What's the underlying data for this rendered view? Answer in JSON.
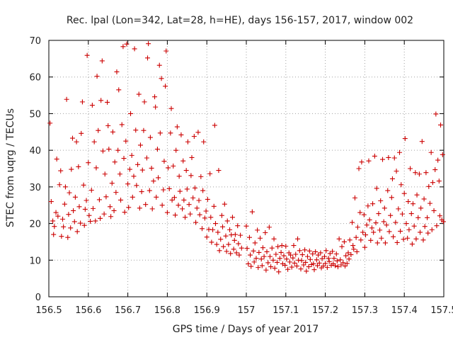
{
  "chart_data": {
    "type": "scatter",
    "title": "Rec. lpal (Lon=342, Lat=28, h=HE), days 156-157, 2017, window 002",
    "xlabel": "GPS time / Days of year 2017",
    "ylabel": "STEC from uqrg / TECUs",
    "xlim": [
      156.5,
      157.5
    ],
    "ylim": [
      0,
      70
    ],
    "x_ticks": [
      156.5,
      156.6,
      156.7,
      156.8,
      156.9,
      157,
      157.1,
      157.2,
      157.3,
      157.4,
      157.5
    ],
    "x_tick_labels": [
      "156.5",
      "156.6",
      "156.7",
      "156.8",
      "156.9",
      "157",
      "157.1",
      "157.2",
      "157.3",
      "157.4",
      "157.5"
    ],
    "y_ticks": [
      0,
      10,
      20,
      30,
      40,
      50,
      60,
      70
    ],
    "y_tick_labels": [
      "0",
      "10",
      "20",
      "30",
      "40",
      "50",
      "60",
      "70"
    ],
    "grid": true,
    "marker": "+",
    "color": "#cc0000",
    "points": [
      [
        156.503,
        47.4
      ],
      [
        156.506,
        26.0
      ],
      [
        156.51,
        20.7
      ],
      [
        156.512,
        17.0
      ],
      [
        156.514,
        19.2
      ],
      [
        156.518,
        23.0
      ],
      [
        156.52,
        37.6
      ],
      [
        156.523,
        22.0
      ],
      [
        156.527,
        30.6
      ],
      [
        156.53,
        34.4
      ],
      [
        156.532,
        16.5
      ],
      [
        156.535,
        21.2
      ],
      [
        156.537,
        19.1
      ],
      [
        156.54,
        25.3
      ],
      [
        156.542,
        30.0
      ],
      [
        156.545,
        53.9
      ],
      [
        156.548,
        16.2
      ],
      [
        156.55,
        22.5
      ],
      [
        156.552,
        28.4
      ],
      [
        156.555,
        18.8
      ],
      [
        156.557,
        34.8
      ],
      [
        156.56,
        43.3
      ],
      [
        156.562,
        23.5
      ],
      [
        156.565,
        20.5
      ],
      [
        156.567,
        27.2
      ],
      [
        156.57,
        42.3
      ],
      [
        156.572,
        17.8
      ],
      [
        156.575,
        35.5
      ],
      [
        156.577,
        24.6
      ],
      [
        156.58,
        20.1
      ],
      [
        156.582,
        44.6
      ],
      [
        156.585,
        53.2
      ],
      [
        156.588,
        30.5
      ],
      [
        156.59,
        19.5
      ],
      [
        156.592,
        23.9
      ],
      [
        156.595,
        26.3
      ],
      [
        156.597,
        65.9
      ],
      [
        156.6,
        36.6
      ],
      [
        156.602,
        22.2
      ],
      [
        156.605,
        20.6
      ],
      [
        156.608,
        29.1
      ],
      [
        156.61,
        52.3
      ],
      [
        156.612,
        24.1
      ],
      [
        156.615,
        42.3
      ],
      [
        156.618,
        20.7
      ],
      [
        156.62,
        35.2
      ],
      [
        156.622,
        60.2
      ],
      [
        156.625,
        45.4
      ],
      [
        156.628,
        26.5
      ],
      [
        156.63,
        21.4
      ],
      [
        156.632,
        53.6
      ],
      [
        156.635,
        64.4
      ],
      [
        156.637,
        39.8
      ],
      [
        156.64,
        22.6
      ],
      [
        156.642,
        33.5
      ],
      [
        156.645,
        27.3
      ],
      [
        156.648,
        53.1
      ],
      [
        156.65,
        46.7
      ],
      [
        156.652,
        40.3
      ],
      [
        156.655,
        24.6
      ],
      [
        156.657,
        21.9
      ],
      [
        156.66,
        31.0
      ],
      [
        156.662,
        45.0
      ],
      [
        156.665,
        23.5
      ],
      [
        156.667,
        36.8
      ],
      [
        156.67,
        28.5
      ],
      [
        156.672,
        61.4
      ],
      [
        156.675,
        40.0
      ],
      [
        156.677,
        56.5
      ],
      [
        156.68,
        33.5
      ],
      [
        156.682,
        26.4
      ],
      [
        156.685,
        47.0
      ],
      [
        156.688,
        68.3
      ],
      [
        156.69,
        37.8
      ],
      [
        156.692,
        23.1
      ],
      [
        156.695,
        42.5
      ],
      [
        156.697,
        69.0
      ],
      [
        156.7,
        30.8
      ],
      [
        156.702,
        24.4
      ],
      [
        156.705,
        34.8
      ],
      [
        156.707,
        50.0
      ],
      [
        156.71,
        38.6
      ],
      [
        156.712,
        27.2
      ],
      [
        156.715,
        32.9
      ],
      [
        156.717,
        67.7
      ],
      [
        156.72,
        45.5
      ],
      [
        156.722,
        30.4
      ],
      [
        156.725,
        36.1
      ],
      [
        156.728,
        55.3
      ],
      [
        156.73,
        24.2
      ],
      [
        156.732,
        41.4
      ],
      [
        156.735,
        28.7
      ],
      [
        156.737,
        34.6
      ],
      [
        156.74,
        45.4
      ],
      [
        156.742,
        53.2
      ],
      [
        156.745,
        25.2
      ],
      [
        156.748,
        37.9
      ],
      [
        156.75,
        65.2
      ],
      [
        156.752,
        69.1
      ],
      [
        156.755,
        29.0
      ],
      [
        156.757,
        43.5
      ],
      [
        156.76,
        35.1
      ],
      [
        156.762,
        24.0
      ],
      [
        156.765,
        31.6
      ],
      [
        156.768,
        54.6
      ],
      [
        156.77,
        51.8
      ],
      [
        156.772,
        27.2
      ],
      [
        156.775,
        40.3
      ],
      [
        156.777,
        32.5
      ],
      [
        156.78,
        63.2
      ],
      [
        156.782,
        44.7
      ],
      [
        156.785,
        59.6
      ],
      [
        156.787,
        25.0
      ],
      [
        156.79,
        29.2
      ],
      [
        156.792,
        37.0
      ],
      [
        156.795,
        57.5
      ],
      [
        156.797,
        67.1
      ],
      [
        156.8,
        23.0
      ],
      [
        156.802,
        35.2
      ],
      [
        156.805,
        29.5
      ],
      [
        156.808,
        44.7
      ],
      [
        156.81,
        51.4
      ],
      [
        156.812,
        26.4
      ],
      [
        156.815,
        35.7
      ],
      [
        156.818,
        27.1
      ],
      [
        156.82,
        22.3
      ],
      [
        156.822,
        40.0
      ],
      [
        156.825,
        46.4
      ],
      [
        156.828,
        25.0
      ],
      [
        156.83,
        32.9
      ],
      [
        156.832,
        28.8
      ],
      [
        156.835,
        44.2
      ],
      [
        156.838,
        24.0
      ],
      [
        156.84,
        37.1
      ],
      [
        156.842,
        26.4
      ],
      [
        156.845,
        21.7
      ],
      [
        156.848,
        34.5
      ],
      [
        156.85,
        29.4
      ],
      [
        156.852,
        42.3
      ],
      [
        156.855,
        25.2
      ],
      [
        156.858,
        22.6
      ],
      [
        156.86,
        33.1
      ],
      [
        156.862,
        38.0
      ],
      [
        156.865,
        27.0
      ],
      [
        156.868,
        43.8
      ],
      [
        156.87,
        29.7
      ],
      [
        156.872,
        20.3
      ],
      [
        156.875,
        24.2
      ],
      [
        156.878,
        44.9
      ],
      [
        156.88,
        26.3
      ],
      [
        156.882,
        22.4
      ],
      [
        156.885,
        32.8
      ],
      [
        156.888,
        18.6
      ],
      [
        156.89,
        29.0
      ],
      [
        156.892,
        42.3
      ],
      [
        156.895,
        21.5
      ],
      [
        156.898,
        23.4
      ],
      [
        156.9,
        16.3
      ],
      [
        156.902,
        26.6
      ],
      [
        156.905,
        18.4
      ],
      [
        156.908,
        33.6
      ],
      [
        156.91,
        21.7
      ],
      [
        156.912,
        14.9
      ],
      [
        156.915,
        18.3
      ],
      [
        156.918,
        24.7
      ],
      [
        156.92,
        46.8
      ],
      [
        156.922,
        20.0
      ],
      [
        156.925,
        14.3
      ],
      [
        156.928,
        17.6
      ],
      [
        156.93,
        34.5
      ],
      [
        156.932,
        12.6
      ],
      [
        156.935,
        15.7
      ],
      [
        156.938,
        22.2
      ],
      [
        156.94,
        19.1
      ],
      [
        156.942,
        13.7
      ],
      [
        156.945,
        25.3
      ],
      [
        156.948,
        16.6
      ],
      [
        156.95,
        12.4
      ],
      [
        156.952,
        20.7
      ],
      [
        156.955,
        14.3
      ],
      [
        156.958,
        18.3
      ],
      [
        156.96,
        11.8
      ],
      [
        156.962,
        16.9
      ],
      [
        156.965,
        21.7
      ],
      [
        156.968,
        13.0
      ],
      [
        156.97,
        15.4
      ],
      [
        156.972,
        17.0
      ],
      [
        156.975,
        12.0
      ],
      [
        156.978,
        19.4
      ],
      [
        156.98,
        14.5
      ],
      [
        156.982,
        11.4
      ],
      [
        156.985,
        16.8
      ],
      [
        156.988,
        13.3
      ],
      [
        157.0,
        19.3
      ],
      [
        157.002,
        13.2
      ],
      [
        157.005,
        9.0
      ],
      [
        157.008,
        16.2
      ],
      [
        157.01,
        11.4
      ],
      [
        157.012,
        8.3
      ],
      [
        157.015,
        23.2
      ],
      [
        157.018,
        12.5
      ],
      [
        157.02,
        9.5
      ],
      [
        157.022,
        14.7
      ],
      [
        157.025,
        10.5
      ],
      [
        157.028,
        18.2
      ],
      [
        157.03,
        8.0
      ],
      [
        157.032,
        12.1
      ],
      [
        157.035,
        16.0
      ],
      [
        157.038,
        10.3
      ],
      [
        157.04,
        8.5
      ],
      [
        157.042,
        13.4
      ],
      [
        157.045,
        11.0
      ],
      [
        157.048,
        17.5
      ],
      [
        157.05,
        7.3
      ],
      [
        157.052,
        12.3
      ],
      [
        157.055,
        9.3
      ],
      [
        157.058,
        19.0
      ],
      [
        157.06,
        11.0
      ],
      [
        157.062,
        8.2
      ],
      [
        157.065,
        13.3
      ],
      [
        157.068,
        10.0
      ],
      [
        157.07,
        15.8
      ],
      [
        157.072,
        7.8
      ],
      [
        157.075,
        11.6
      ],
      [
        157.078,
        9.4
      ],
      [
        157.08,
        13.7
      ],
      [
        157.082,
        6.8
      ],
      [
        157.085,
        10.5
      ],
      [
        157.088,
        12.1
      ],
      [
        157.09,
        14.0
      ],
      [
        157.092,
        9.0
      ],
      [
        157.095,
        11.2
      ],
      [
        157.098,
        8.6
      ],
      [
        157.1,
        13.8
      ],
      [
        157.102,
        10.3
      ],
      [
        157.105,
        7.5
      ],
      [
        157.108,
        12.0
      ],
      [
        157.11,
        9.5
      ],
      [
        157.112,
        11.4
      ],
      [
        157.115,
        8.1
      ],
      [
        157.118,
        10.6
      ],
      [
        157.12,
        14.0
      ],
      [
        157.122,
        9.2
      ],
      [
        157.125,
        11.6
      ],
      [
        157.128,
        8.4
      ],
      [
        157.13,
        15.8
      ],
      [
        157.132,
        10.0
      ],
      [
        157.135,
        12.6
      ],
      [
        157.138,
        7.6
      ],
      [
        157.14,
        9.9
      ],
      [
        157.142,
        11.5
      ],
      [
        157.145,
        8.7
      ],
      [
        157.148,
        12.8
      ],
      [
        157.15,
        9.4
      ],
      [
        157.152,
        7.0
      ],
      [
        157.155,
        11.0
      ],
      [
        157.158,
        8.2
      ],
      [
        157.16,
        12.5
      ],
      [
        157.162,
        10.2
      ],
      [
        157.165,
        8.8
      ],
      [
        157.168,
        11.7
      ],
      [
        157.17,
        9.0
      ],
      [
        157.172,
        7.4
      ],
      [
        157.175,
        12.3
      ],
      [
        157.178,
        10.1
      ],
      [
        157.18,
        8.5
      ],
      [
        157.182,
        11.4
      ],
      [
        157.185,
        9.2
      ],
      [
        157.188,
        12.0
      ],
      [
        157.19,
        7.9
      ],
      [
        157.192,
        10.4
      ],
      [
        157.195,
        8.4
      ],
      [
        157.198,
        11.0
      ],
      [
        157.2,
        9.1
      ],
      [
        157.202,
        12.6
      ],
      [
        157.205,
        8.0
      ],
      [
        157.208,
        10.5
      ],
      [
        157.21,
        9.6
      ],
      [
        157.212,
        11.8
      ],
      [
        157.215,
        8.6
      ],
      [
        157.218,
        12.4
      ],
      [
        157.22,
        9.0
      ],
      [
        157.222,
        10.5
      ],
      [
        157.225,
        8.5
      ],
      [
        157.228,
        11.7
      ],
      [
        157.23,
        9.8
      ],
      [
        157.232,
        8.2
      ],
      [
        157.235,
        15.8
      ],
      [
        157.238,
        10.1
      ],
      [
        157.24,
        8.7
      ],
      [
        157.242,
        13.7
      ],
      [
        157.245,
        9.3
      ],
      [
        157.248,
        15.0
      ],
      [
        157.25,
        8.4
      ],
      [
        157.252,
        11.2
      ],
      [
        157.255,
        9.1
      ],
      [
        157.258,
        12.0
      ],
      [
        157.26,
        10.3
      ],
      [
        157.262,
        15.5
      ],
      [
        157.265,
        11.5
      ],
      [
        157.268,
        20.3
      ],
      [
        157.27,
        14.0
      ],
      [
        157.272,
        13.0
      ],
      [
        157.275,
        27.0
      ],
      [
        157.278,
        16.2
      ],
      [
        157.28,
        12.3
      ],
      [
        157.282,
        19.0
      ],
      [
        157.285,
        35.0
      ],
      [
        157.288,
        23.0
      ],
      [
        157.29,
        15.5
      ],
      [
        157.292,
        36.8
      ],
      [
        157.295,
        17.6
      ],
      [
        157.298,
        22.4
      ],
      [
        157.3,
        13.5
      ],
      [
        157.302,
        16.9
      ],
      [
        157.305,
        19.6
      ],
      [
        157.308,
        24.8
      ],
      [
        157.31,
        37.1
      ],
      [
        157.312,
        21.0
      ],
      [
        157.315,
        15.4
      ],
      [
        157.318,
        18.8
      ],
      [
        157.32,
        25.4
      ],
      [
        157.322,
        17.6
      ],
      [
        157.325,
        38.4
      ],
      [
        157.328,
        20.2
      ],
      [
        157.33,
        29.6
      ],
      [
        157.332,
        14.7
      ],
      [
        157.335,
        22.7
      ],
      [
        157.338,
        18.2
      ],
      [
        157.34,
        26.2
      ],
      [
        157.342,
        16.0
      ],
      [
        157.345,
        37.5
      ],
      [
        157.348,
        20.5
      ],
      [
        157.35,
        24.2
      ],
      [
        157.352,
        14.7
      ],
      [
        157.355,
        19.6
      ],
      [
        157.358,
        29.0
      ],
      [
        157.36,
        38.0
      ],
      [
        157.362,
        17.8
      ],
      [
        157.365,
        22.2
      ],
      [
        157.368,
        27.1
      ],
      [
        157.37,
        32.2
      ],
      [
        157.372,
        16.4
      ],
      [
        157.375,
        37.9
      ],
      [
        157.378,
        20.3
      ],
      [
        157.38,
        34.3
      ],
      [
        157.382,
        14.8
      ],
      [
        157.385,
        24.0
      ],
      [
        157.388,
        39.4
      ],
      [
        157.39,
        17.9
      ],
      [
        157.392,
        30.6
      ],
      [
        157.395,
        22.6
      ],
      [
        157.398,
        15.7
      ],
      [
        157.4,
        28.2
      ],
      [
        157.402,
        43.2
      ],
      [
        157.405,
        20.0
      ],
      [
        157.408,
        16.0
      ],
      [
        157.41,
        26.0
      ],
      [
        157.412,
        18.3
      ],
      [
        157.415,
        35.0
      ],
      [
        157.418,
        22.7
      ],
      [
        157.42,
        14.4
      ],
      [
        157.422,
        25.4
      ],
      [
        157.425,
        19.3
      ],
      [
        157.428,
        33.9
      ],
      [
        157.43,
        15.8
      ],
      [
        157.432,
        27.8
      ],
      [
        157.435,
        21.6
      ],
      [
        157.438,
        33.5
      ],
      [
        157.44,
        17.6
      ],
      [
        157.442,
        24.2
      ],
      [
        157.445,
        42.4
      ],
      [
        157.448,
        15.5
      ],
      [
        157.45,
        26.7
      ],
      [
        157.452,
        19.2
      ],
      [
        157.455,
        33.9
      ],
      [
        157.458,
        21.6
      ],
      [
        157.46,
        17.4
      ],
      [
        157.462,
        30.1
      ],
      [
        157.465,
        25.5
      ],
      [
        157.468,
        39.4
      ],
      [
        157.47,
        18.3
      ],
      [
        157.472,
        31.2
      ],
      [
        157.475,
        23.5
      ],
      [
        157.478,
        34.7
      ],
      [
        157.48,
        49.9
      ],
      [
        157.482,
        19.4
      ],
      [
        157.485,
        37.3
      ],
      [
        157.488,
        31.6
      ],
      [
        157.49,
        22.1
      ],
      [
        157.492,
        46.9
      ],
      [
        157.495,
        21.0
      ],
      [
        157.497,
        38.8
      ],
      [
        157.499,
        20.5
      ]
    ]
  }
}
